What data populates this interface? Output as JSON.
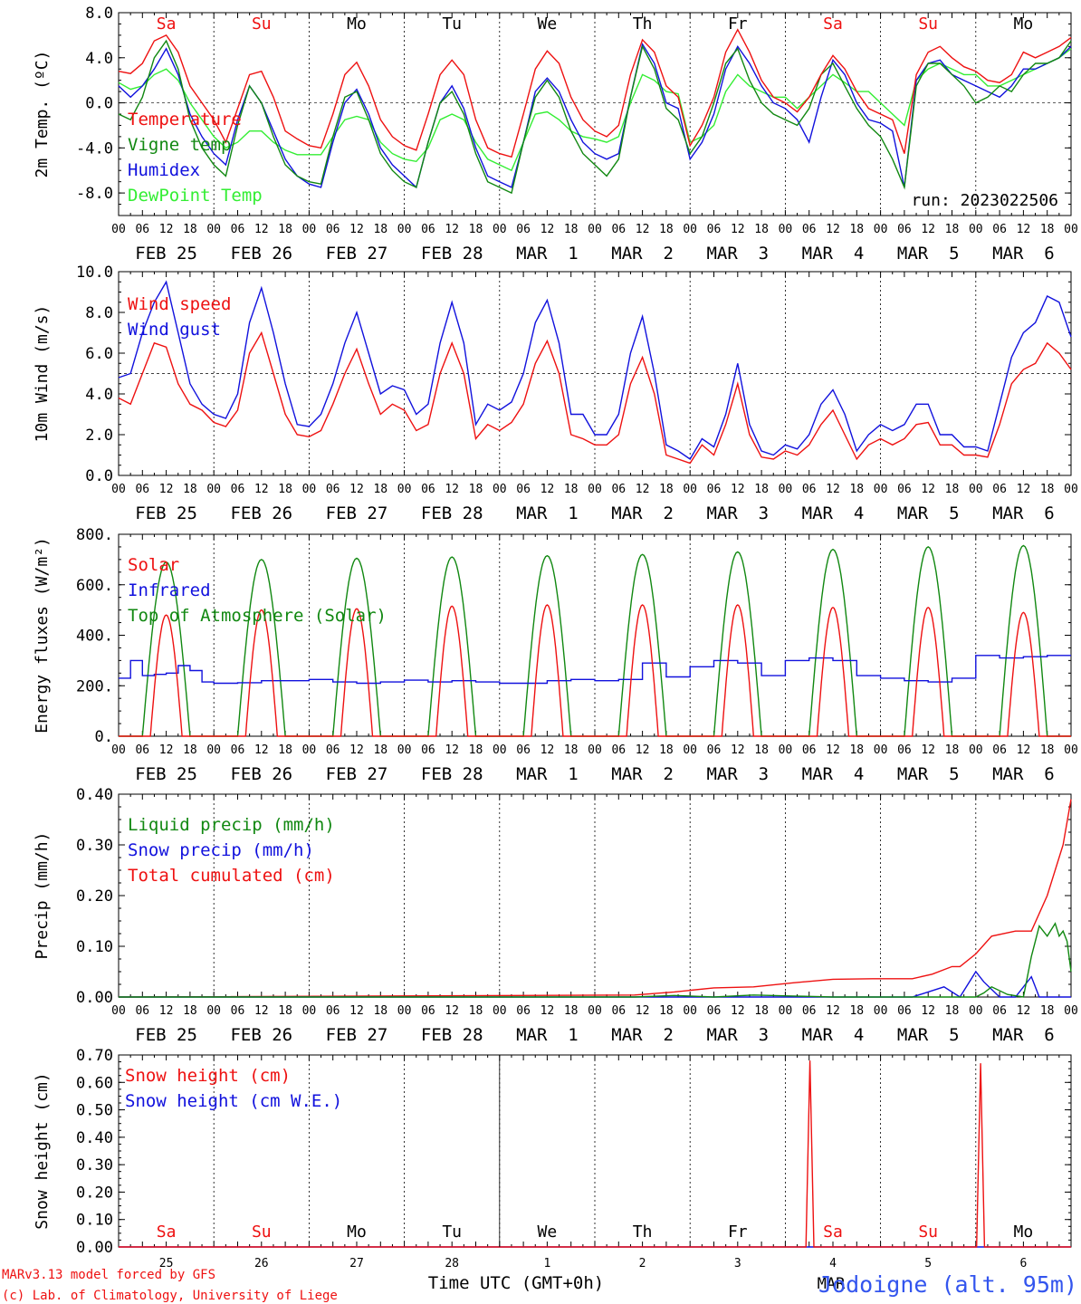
{
  "colors": {
    "red": "#ee1111",
    "dark_green": "#118811",
    "blue": "#1111dd",
    "light_green": "#33ee33",
    "black": "#000000",
    "weekend": "#ee1111"
  },
  "time_axis": {
    "hour_ticks": [
      "00",
      "06",
      "12",
      "18"
    ],
    "date_labels": [
      "FEB 25",
      "FEB 26",
      "FEB 27",
      "FEB 28",
      "MAR  1",
      "MAR  2",
      "MAR  3",
      "MAR  4",
      "MAR  5",
      "MAR  6"
    ],
    "day_labels": [
      "Sa",
      "Su",
      "Mo",
      "Tu",
      "We",
      "Th",
      "Fr",
      "Sa",
      "Su",
      "Mo"
    ],
    "weekend_flags": [
      true,
      true,
      false,
      false,
      false,
      false,
      false,
      true,
      true,
      false
    ],
    "bottom_day_numbers": [
      "25",
      "26",
      "27",
      "28",
      "1",
      "2",
      "3",
      "4",
      "5",
      "6"
    ],
    "bottom_month": "MAR"
  },
  "footer": {
    "model": "MARv3.13 model forced by GFS",
    "lab": "(c) Lab. of Climatology, University of Liege",
    "xlabel": "Time UTC (GMT+0h)",
    "station": "Jodoigne (alt. 95m)"
  },
  "chart_data": [
    {
      "type": "line",
      "ylabel": "2m Temp. (ºC)",
      "ylim": [
        -10,
        8
      ],
      "yticks": [
        "8.0",
        "4.0",
        "0.0",
        "-4.0",
        "-8.0"
      ],
      "ytick_values": [
        8,
        4,
        0,
        -4,
        -8
      ],
      "reference_line": 0,
      "annotation": "run: 2023022506",
      "x_unit": "hours since 00 UTC FEB 25",
      "x": [
        0,
        3,
        6,
        9,
        12,
        15,
        18,
        21,
        24,
        27,
        30,
        33,
        36,
        39,
        42,
        45,
        48,
        51,
        54,
        57,
        60,
        63,
        66,
        69,
        72,
        75,
        78,
        81,
        84,
        87,
        90,
        93,
        96,
        99,
        102,
        105,
        108,
        111,
        114,
        117,
        120,
        123,
        126,
        129,
        132,
        135,
        138,
        141,
        144,
        147,
        150,
        153,
        156,
        159,
        162,
        165,
        168,
        171,
        174,
        177,
        180,
        183,
        186,
        189,
        192,
        195,
        198,
        201,
        204,
        207,
        210,
        213,
        216,
        219,
        222,
        225,
        228,
        231,
        234,
        237,
        240
      ],
      "series": [
        {
          "name": "Temperature",
          "color_key": "red",
          "values": [
            2.8,
            2.6,
            3.5,
            5.5,
            6.0,
            4.5,
            1.5,
            0.0,
            -1.5,
            -3.5,
            -0.5,
            2.5,
            2.8,
            0.5,
            -2.5,
            -3.2,
            -3.8,
            -4.0,
            -1.0,
            2.5,
            3.6,
            1.5,
            -1.5,
            -3.0,
            -3.8,
            -4.2,
            -1.0,
            2.5,
            3.8,
            2.5,
            -1.5,
            -4.0,
            -4.5,
            -4.8,
            -1.0,
            3.0,
            4.6,
            3.5,
            0.5,
            -1.5,
            -2.5,
            -3.0,
            -2.0,
            2.5,
            5.6,
            4.5,
            1.5,
            0.5,
            -3.8,
            -2.0,
            0.5,
            4.5,
            6.5,
            4.5,
            2.0,
            0.5,
            0.0,
            -0.8,
            0.5,
            2.5,
            4.2,
            3.0,
            1.0,
            -0.5,
            -1.0,
            -1.5,
            -4.5,
            2.5,
            4.5,
            5.0,
            4.0,
            3.2,
            2.8,
            2.0,
            1.8,
            2.5,
            4.5,
            4.0,
            4.5,
            5.0,
            5.8
          ]
        },
        {
          "name": "Vigne temp",
          "color_key": "dark_green",
          "values": [
            -1.0,
            -1.5,
            0.5,
            4.0,
            5.5,
            3.0,
            -1.5,
            -4.0,
            -5.5,
            -6.5,
            -2.0,
            1.5,
            0.0,
            -3.0,
            -5.5,
            -6.5,
            -7.0,
            -7.2,
            -3.0,
            0.5,
            1.0,
            -1.5,
            -4.5,
            -6.0,
            -7.0,
            -7.5,
            -3.5,
            0.0,
            1.0,
            -1.0,
            -4.5,
            -7.0,
            -7.5,
            -8.0,
            -3.5,
            0.5,
            2.0,
            0.5,
            -2.5,
            -4.5,
            -5.5,
            -6.5,
            -5.0,
            0.5,
            5.0,
            3.0,
            -0.5,
            -1.5,
            -4.5,
            -3.0,
            0.0,
            3.5,
            4.8,
            2.0,
            0.0,
            -1.0,
            -1.5,
            -2.0,
            -0.5,
            2.5,
            3.5,
            1.5,
            -0.5,
            -2.0,
            -3.0,
            -5.0,
            -7.5,
            1.5,
            3.5,
            3.5,
            2.5,
            1.5,
            0.0,
            0.5,
            1.5,
            1.0,
            2.5,
            3.5,
            3.5,
            4.0,
            5.5
          ]
        },
        {
          "name": "Humidex",
          "color_key": "blue",
          "values": [
            1.5,
            0.5,
            1.5,
            3.0,
            4.8,
            2.5,
            -1.0,
            -3.0,
            -4.5,
            -5.5,
            -1.5,
            1.5,
            0.0,
            -2.5,
            -5.0,
            -6.5,
            -7.2,
            -7.5,
            -3.5,
            0.0,
            1.2,
            -1.0,
            -4.0,
            -5.5,
            -6.5,
            -7.5,
            -3.5,
            0.0,
            1.5,
            -0.5,
            -4.0,
            -6.5,
            -7.0,
            -7.5,
            -3.5,
            1.0,
            2.2,
            1.0,
            -1.5,
            -3.5,
            -4.5,
            -5.0,
            -4.5,
            0.5,
            5.2,
            3.5,
            0.0,
            -0.5,
            -5.0,
            -3.5,
            -1.0,
            3.0,
            5.0,
            3.5,
            1.5,
            0.0,
            -0.5,
            -1.5,
            -3.5,
            0.5,
            3.8,
            2.5,
            0.0,
            -1.5,
            -1.8,
            -2.5,
            -7.5,
            2.0,
            3.5,
            3.8,
            2.5,
            2.0,
            1.5,
            1.0,
            0.5,
            1.5,
            3.0,
            3.0,
            3.5,
            4.0,
            5.0
          ]
        },
        {
          "name": "DewPoint Temp",
          "color_key": "light_green",
          "values": [
            1.8,
            1.2,
            1.5,
            2.5,
            3.0,
            2.0,
            0.0,
            -1.5,
            -3.0,
            -4.0,
            -3.5,
            -2.5,
            -2.5,
            -3.5,
            -4.2,
            -4.6,
            -4.6,
            -4.6,
            -3.0,
            -1.5,
            -1.2,
            -1.5,
            -3.5,
            -4.5,
            -5.0,
            -5.2,
            -4.0,
            -1.5,
            -1.0,
            -1.5,
            -3.5,
            -5.0,
            -5.5,
            -6.0,
            -3.5,
            -1.0,
            -0.8,
            -1.5,
            -2.5,
            -3.0,
            -3.2,
            -3.5,
            -3.0,
            0.0,
            2.5,
            2.0,
            1.0,
            0.8,
            -3.5,
            -3.0,
            -2.0,
            1.0,
            2.5,
            1.5,
            1.0,
            0.5,
            0.5,
            -0.5,
            0.5,
            1.5,
            2.5,
            1.8,
            1.0,
            1.0,
            0.0,
            -1.0,
            -2.0,
            2.0,
            3.0,
            3.5,
            3.0,
            2.5,
            2.5,
            1.5,
            1.5,
            2.0,
            2.5,
            3.0,
            3.5,
            4.0,
            4.8
          ]
        }
      ]
    },
    {
      "type": "line",
      "ylabel": "10m Wind (m/s)",
      "ylim": [
        0,
        10
      ],
      "yticks": [
        "10.0",
        "8.0",
        "6.0",
        "4.0",
        "2.0",
        "0.0"
      ],
      "ytick_values": [
        10,
        8,
        6,
        4,
        2,
        0
      ],
      "reference_line": 5,
      "x_unit": "hours since 00 UTC FEB 25",
      "x": [
        0,
        3,
        6,
        9,
        12,
        15,
        18,
        21,
        24,
        27,
        30,
        33,
        36,
        39,
        42,
        45,
        48,
        51,
        54,
        57,
        60,
        63,
        66,
        69,
        72,
        75,
        78,
        81,
        84,
        87,
        90,
        93,
        96,
        99,
        102,
        105,
        108,
        111,
        114,
        117,
        120,
        123,
        126,
        129,
        132,
        135,
        138,
        141,
        144,
        147,
        150,
        153,
        156,
        159,
        162,
        165,
        168,
        171,
        174,
        177,
        180,
        183,
        186,
        189,
        192,
        195,
        198,
        201,
        204,
        207,
        210,
        213,
        216,
        219,
        222,
        225,
        228,
        231,
        234,
        237,
        240
      ],
      "series": [
        {
          "name": "Wind speed",
          "color_key": "red",
          "values": [
            3.8,
            3.5,
            5.0,
            6.5,
            6.3,
            4.5,
            3.5,
            3.2,
            2.6,
            2.4,
            3.2,
            6.0,
            7.0,
            5.0,
            3.0,
            2.0,
            1.9,
            2.2,
            3.5,
            5.0,
            6.2,
            4.5,
            3.0,
            3.5,
            3.2,
            2.2,
            2.5,
            5.0,
            6.5,
            5.0,
            1.8,
            2.5,
            2.2,
            2.6,
            3.5,
            5.5,
            6.6,
            5.0,
            2.0,
            1.8,
            1.5,
            1.5,
            2.0,
            4.5,
            5.8,
            4.0,
            1.0,
            0.8,
            0.6,
            1.5,
            1.0,
            2.5,
            4.5,
            2.0,
            0.9,
            0.8,
            1.2,
            1.0,
            1.5,
            2.5,
            3.2,
            2.0,
            0.8,
            1.5,
            1.8,
            1.5,
            1.8,
            2.5,
            2.6,
            1.5,
            1.5,
            1.0,
            1.0,
            0.9,
            2.5,
            4.5,
            5.2,
            5.5,
            6.5,
            6.0,
            5.2
          ]
        },
        {
          "name": "Wind gust",
          "color_key": "blue",
          "values": [
            4.8,
            5.0,
            7.0,
            8.5,
            9.5,
            7.0,
            4.5,
            3.5,
            3.0,
            2.8,
            4.0,
            7.5,
            9.2,
            7.0,
            4.5,
            2.5,
            2.4,
            3.0,
            4.5,
            6.5,
            8.0,
            6.0,
            4.0,
            4.4,
            4.2,
            3.0,
            3.5,
            6.5,
            8.5,
            6.5,
            2.5,
            3.5,
            3.2,
            3.6,
            5.0,
            7.5,
            8.6,
            6.5,
            3.0,
            3.0,
            2.0,
            2.0,
            3.0,
            6.0,
            7.8,
            5.0,
            1.5,
            1.2,
            0.8,
            1.8,
            1.4,
            3.0,
            5.5,
            2.5,
            1.2,
            1.0,
            1.5,
            1.3,
            2.0,
            3.5,
            4.2,
            3.0,
            1.2,
            2.0,
            2.5,
            2.2,
            2.5,
            3.5,
            3.5,
            2.0,
            2.0,
            1.4,
            1.4,
            1.2,
            3.5,
            5.8,
            7.0,
            7.5,
            8.8,
            8.5,
            6.8
          ]
        }
      ]
    },
    {
      "type": "line",
      "ylabel": "Energy fluxes (W/m²)",
      "ylim": [
        0,
        800
      ],
      "yticks": [
        "800.",
        "600.",
        "400.",
        "200.",
        "0."
      ],
      "ytick_values": [
        800,
        600,
        400,
        200,
        0
      ],
      "x_unit": "hours since 00 UTC FEB 25",
      "peaks_hour": 12,
      "half_width_hours": 5.2,
      "toa_peaks": [
        690,
        700,
        705,
        710,
        715,
        720,
        730,
        740,
        750,
        755
      ],
      "solar_peaks": [
        480,
        500,
        505,
        515,
        520,
        520,
        520,
        510,
        510,
        490
      ],
      "series": [
        {
          "name": "Solar",
          "color_key": "red"
        },
        {
          "name": "Infrared",
          "color_key": "blue",
          "x": [
            0,
            3,
            6,
            9,
            12,
            15,
            18,
            21,
            24,
            30,
            36,
            42,
            48,
            54,
            60,
            66,
            72,
            78,
            84,
            90,
            96,
            102,
            108,
            114,
            120,
            126,
            132,
            138,
            144,
            150,
            156,
            162,
            168,
            174,
            180,
            186,
            192,
            198,
            204,
            210,
            216,
            222,
            228,
            234,
            240
          ],
          "values": [
            230,
            300,
            240,
            245,
            250,
            280,
            260,
            215,
            210,
            212,
            220,
            220,
            225,
            215,
            210,
            215,
            222,
            215,
            220,
            215,
            210,
            210,
            220,
            225,
            220,
            225,
            290,
            235,
            275,
            300,
            290,
            240,
            300,
            310,
            300,
            240,
            230,
            220,
            215,
            230,
            320,
            310,
            315,
            320,
            320
          ]
        },
        {
          "name": "Top of Atmosphere (Solar)",
          "color_key": "dark_green"
        }
      ]
    },
    {
      "type": "line",
      "ylabel": "Precip (mm/h)",
      "ylim": [
        0,
        0.4
      ],
      "yticks": [
        "0.40",
        "0.30",
        "0.20",
        "0.10",
        "0.00"
      ],
      "ytick_values": [
        0.4,
        0.3,
        0.2,
        0.1,
        0.0
      ],
      "x_unit": "hours since 00 UTC FEB 25",
      "series": [
        {
          "name": "Liquid precip (mm/h)",
          "color_key": "dark_green",
          "x": [
            0,
            130,
            140,
            150,
            160,
            170,
            180,
            200,
            214,
            216,
            218,
            220,
            224,
            228,
            230,
            232,
            234,
            236,
            237,
            238,
            239,
            240
          ],
          "values": [
            0,
            0,
            0.003,
            0,
            0.004,
            0.002,
            0,
            0,
            0,
            0,
            0.008,
            0.02,
            0.005,
            0,
            0.08,
            0.14,
            0.12,
            0.145,
            0.12,
            0.13,
            0.11,
            0.05
          ]
        },
        {
          "name": "Snow precip (mm/h)",
          "color_key": "blue",
          "x": [
            0,
            140,
            150,
            200,
            208,
            212,
            216,
            218,
            222,
            226,
            230,
            232,
            234,
            240
          ],
          "values": [
            0,
            0,
            0,
            0,
            0.02,
            0,
            0.05,
            0.03,
            0,
            0,
            0.04,
            0,
            0,
            0
          ]
        },
        {
          "name": "Total cumulated (cm)",
          "color_key": "red",
          "x": [
            0,
            130,
            140,
            150,
            160,
            170,
            180,
            190,
            200,
            205,
            210,
            212,
            216,
            220,
            226,
            230,
            234,
            238,
            240
          ],
          "values": [
            0,
            0.004,
            0.01,
            0.018,
            0.02,
            0.028,
            0.035,
            0.036,
            0.036,
            0.045,
            0.06,
            0.06,
            0.085,
            0.12,
            0.13,
            0.13,
            0.2,
            0.3,
            0.39
          ]
        }
      ]
    },
    {
      "type": "line",
      "ylabel": "Snow height (cm)",
      "ylim": [
        0,
        0.7
      ],
      "yticks": [
        "0.70",
        "0.60",
        "0.50",
        "0.40",
        "0.30",
        "0.20",
        "0.10",
        "0.00"
      ],
      "ytick_values": [
        0.7,
        0.6,
        0.5,
        0.4,
        0.3,
        0.2,
        0.1,
        0.0
      ],
      "x_unit": "hours since 00 UTC FEB 25",
      "series": [
        {
          "name": "Snow height (cm)",
          "color_key": "red",
          "x": [
            0,
            173.2,
            174.2,
            175.2,
            216.2,
            217.2,
            218.2,
            240
          ],
          "values": [
            0,
            0,
            0.68,
            0,
            0,
            0.67,
            0,
            0
          ]
        },
        {
          "name": "Snow height (cm W.E.)",
          "color_key": "blue",
          "x": [
            0,
            240
          ],
          "values": [
            0,
            0
          ]
        }
      ]
    }
  ]
}
